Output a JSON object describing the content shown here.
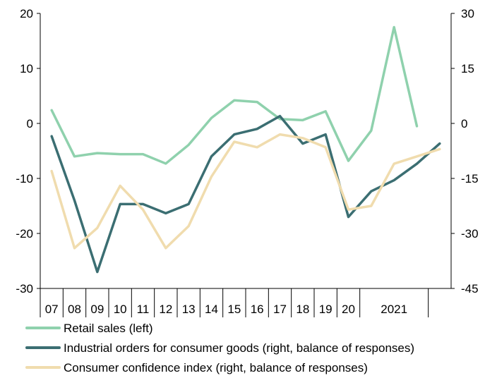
{
  "chart_data": {
    "type": "line",
    "x": [
      "2007",
      "2008",
      "2009",
      "2010",
      "2011",
      "2012",
      "2013",
      "2014",
      "2015",
      "2016",
      "2017",
      "2018",
      "2019",
      "2020",
      "2020.5",
      "2021",
      "2021.5",
      "2022"
    ],
    "x_tick_labels": [
      "07",
      "08",
      "09",
      "10",
      "11",
      "12",
      "13",
      "14",
      "15",
      "16",
      "17",
      "18",
      "19",
      "20",
      "2021"
    ],
    "left_axis": {
      "ylim": [
        -30,
        20
      ],
      "ticks": [
        20,
        10,
        0,
        -10,
        -20,
        -30
      ]
    },
    "right_axis": {
      "ylim": [
        -45,
        30
      ],
      "ticks": [
        30,
        15,
        0,
        -15,
        -30,
        -45
      ]
    },
    "grid": false,
    "legend_position": "bottom",
    "series": [
      {
        "name": "Retail sales (left)",
        "axis": "left",
        "color": "#8fd1ad",
        "values": [
          2.4,
          -6.0,
          -5.4,
          -5.6,
          -5.6,
          -7.3,
          -3.9,
          1.0,
          4.2,
          3.9,
          0.8,
          0.6,
          2.2,
          -6.8,
          -1.3,
          17.5,
          -0.5,
          null
        ]
      },
      {
        "name": "Industrial orders for consumer goods (right, balance of responses)",
        "axis": "right",
        "color": "#3b6e72",
        "values": [
          -3.5,
          -21.0,
          -40.5,
          -22.0,
          -22.0,
          -24.5,
          -22.0,
          -9.0,
          -3.0,
          -1.5,
          2.0,
          -5.5,
          -3.0,
          -25.5,
          -18.5,
          -15.5,
          -11.0,
          -5.5
        ]
      },
      {
        "name": "Consumer confidence index (right, balance of responses)",
        "axis": "right",
        "color": "#f0dcae",
        "values": [
          -13.0,
          -34.0,
          -28.5,
          -17.0,
          -23.5,
          -34.0,
          -28.0,
          -14.5,
          -5.0,
          -6.5,
          -3.0,
          -4.0,
          -6.5,
          -23.5,
          -22.5,
          -11.0,
          -9.0,
          -7.0
        ]
      }
    ]
  }
}
